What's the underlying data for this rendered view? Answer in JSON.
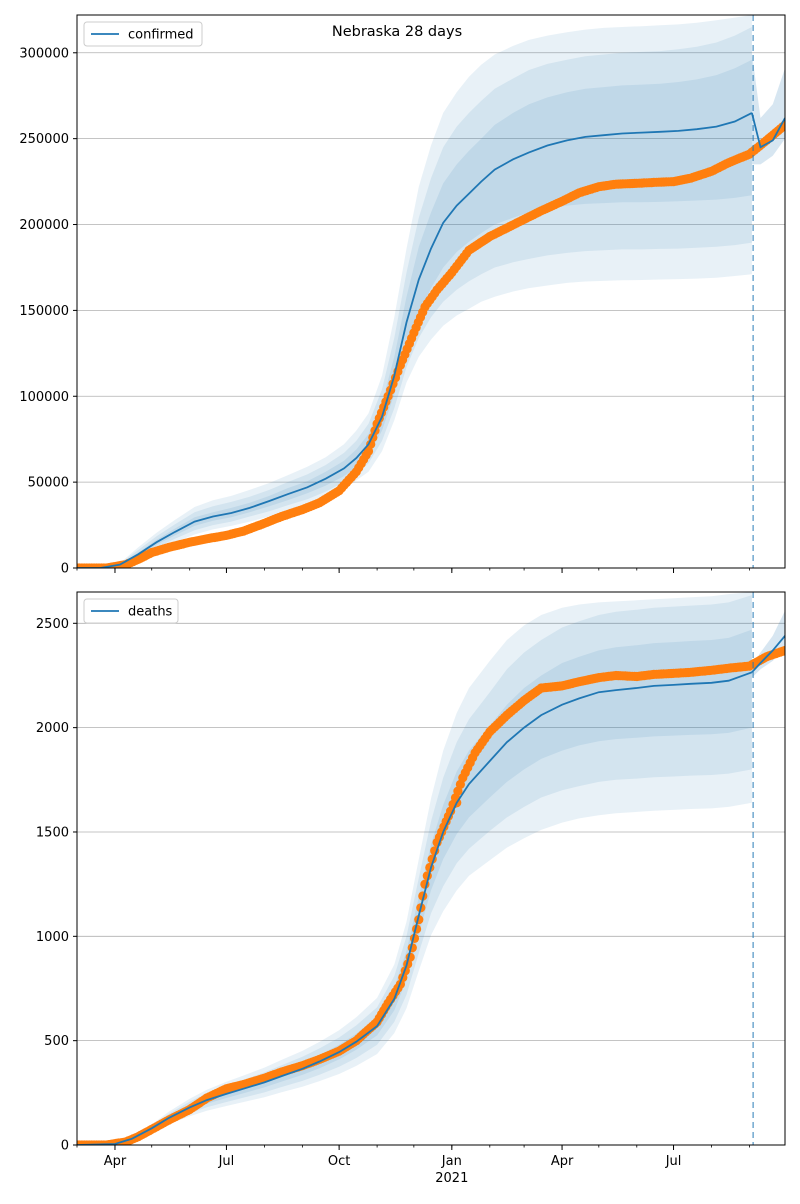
{
  "figure_title": "Nebraska 28 days",
  "x_axis": {
    "tick_labels": [
      "Apr",
      "Jul",
      "Oct",
      "Jan",
      "Apr",
      "Jul"
    ],
    "tick_dates": [
      "2020-04-01",
      "2020-07-01",
      "2020-10-01",
      "2021-01-01",
      "2021-04-01",
      "2021-07-01"
    ],
    "year_label": "2021",
    "xlim": [
      "2020-03-01",
      "2021-09-30"
    ]
  },
  "colors": {
    "model_line": "#1f77b4",
    "band": "#1f77b4",
    "observed": "#ff7f0e",
    "grid": "#b0b0b0",
    "forecast_marker": "#1f77b4"
  },
  "chart_data": [
    {
      "type": "line",
      "legend": "confirmed",
      "legend_position": "top-left",
      "ylim": [
        0,
        322000
      ],
      "yticks": [
        0,
        50000,
        100000,
        150000,
        200000,
        250000,
        300000
      ],
      "ytick_labels": [
        "0",
        "50000",
        "100000",
        "150000",
        "200000",
        "250000",
        "300000"
      ],
      "grid": "horizontal",
      "forecast_start": "2021-09-04",
      "model": {
        "x": [
          "2020-03-01",
          "2020-03-20",
          "2020-04-05",
          "2020-04-20",
          "2020-05-05",
          "2020-05-20",
          "2020-06-05",
          "2020-06-20",
          "2020-07-05",
          "2020-07-20",
          "2020-08-05",
          "2020-08-20",
          "2020-09-05",
          "2020-09-20",
          "2020-10-05",
          "2020-10-15",
          "2020-10-25",
          "2020-11-05",
          "2020-11-15",
          "2020-11-25",
          "2020-12-05",
          "2020-12-15",
          "2020-12-25",
          "2021-01-05",
          "2021-01-15",
          "2021-01-25",
          "2021-02-05",
          "2021-02-20",
          "2021-03-05",
          "2021-03-20",
          "2021-04-05",
          "2021-04-20",
          "2021-05-05",
          "2021-05-20",
          "2021-06-05",
          "2021-06-20",
          "2021-07-05",
          "2021-07-20",
          "2021-08-05",
          "2021-08-20",
          "2021-09-03"
        ],
        "y": [
          0,
          0,
          2000,
          8000,
          15000,
          21000,
          27000,
          30000,
          32000,
          35000,
          39000,
          43000,
          47000,
          52000,
          58000,
          64000,
          72000,
          88000,
          112000,
          143000,
          168000,
          186000,
          201000,
          211000,
          218000,
          225000,
          232000,
          238000,
          242000,
          246000,
          249000,
          251000,
          252000,
          253000,
          253500,
          254000,
          254500,
          255500,
          257000,
          260000,
          265000
        ]
      },
      "bands": [
        {
          "lower": [
            0,
            0,
            1800,
            7000,
            13500,
            19000,
            24500,
            27500,
            29500,
            32500,
            36000,
            39500,
            43500,
            48000,
            53500,
            59000,
            66000,
            80000,
            101000,
            128000,
            148000,
            163000,
            175000,
            184000,
            190000,
            195000,
            200000,
            204000,
            207000,
            209000,
            211000,
            212000,
            212500,
            213000,
            213000,
            213200,
            213500,
            214000,
            214500,
            215500,
            217000
          ],
          "upper": [
            0,
            0,
            2200,
            9000,
            16500,
            23000,
            29500,
            32500,
            35000,
            38000,
            42000,
            46500,
            50500,
            56000,
            62500,
            69000,
            78000,
            96000,
            123000,
            158000,
            187000,
            207000,
            224000,
            235000,
            243000,
            250000,
            258000,
            265000,
            270000,
            274000,
            277000,
            279000,
            280000,
            281000,
            281500,
            282000,
            283000,
            284500,
            287000,
            291000,
            296000
          ]
        },
        {
          "lower": [
            0,
            0,
            1600,
            6000,
            12000,
            17000,
            22000,
            25000,
            27000,
            30000,
            33000,
            36500,
            40000,
            44500,
            50000,
            55000,
            61000,
            74000,
            93000,
            117000,
            134000,
            146000,
            155000,
            162000,
            167000,
            171000,
            175000,
            178000,
            180000,
            182000,
            183500,
            184500,
            185000,
            185500,
            185500,
            185800,
            186000,
            186500,
            187000,
            188000,
            189500
          ],
          "upper": [
            0,
            0,
            2500,
            10500,
            18500,
            25500,
            32500,
            36000,
            38500,
            41500,
            45500,
            50000,
            54500,
            60000,
            67000,
            74000,
            84000,
            104000,
            134000,
            172000,
            204000,
            227000,
            245000,
            257000,
            265000,
            272000,
            279000,
            285000,
            290000,
            293500,
            296000,
            298000,
            299000,
            300000,
            300500,
            301000,
            302000,
            303500,
            306000,
            310000,
            315000
          ]
        },
        {
          "lower": [
            0,
            0,
            1400,
            5000,
            10000,
            15000,
            19500,
            22500,
            24500,
            27000,
            30000,
            33000,
            36500,
            41000,
            46000,
            51000,
            56000,
            68000,
            86000,
            108000,
            123000,
            133000,
            141000,
            147000,
            151000,
            155000,
            158000,
            161000,
            163000,
            164500,
            166000,
            166800,
            167200,
            167500,
            167700,
            168000,
            168200,
            168500,
            169000,
            170000,
            171000
          ],
          "upper": [
            0,
            0,
            2900,
            12000,
            20500,
            28000,
            35500,
            39500,
            42000,
            45500,
            49500,
            54000,
            59000,
            64500,
            72000,
            80000,
            90000,
            112000,
            146000,
            186000,
            222000,
            246000,
            265000,
            277000,
            286000,
            293000,
            299000,
            304000,
            307500,
            310000,
            312000,
            313500,
            314500,
            315000,
            315500,
            316000,
            316500,
            317500,
            319000,
            320500,
            322000
          ]
        }
      ],
      "forecast_model": {
        "x": [
          "2021-09-03",
          "2021-09-10",
          "2021-09-20",
          "2021-09-30"
        ],
        "y": [
          265000,
          245000,
          249000,
          262000
        ],
        "upper": [
          300000,
          262000,
          270000,
          291000
        ],
        "lower": [
          235000,
          235000,
          240000,
          250000
        ]
      },
      "observed": {
        "x": [
          "2020-03-01",
          "2020-03-25",
          "2020-04-10",
          "2020-04-20",
          "2020-05-01",
          "2020-05-15",
          "2020-06-01",
          "2020-06-15",
          "2020-07-01",
          "2020-07-15",
          "2020-08-01",
          "2020-08-15",
          "2020-09-01",
          "2020-09-15",
          "2020-10-01",
          "2020-10-15",
          "2020-10-25",
          "2020-11-01",
          "2020-11-10",
          "2020-11-20",
          "2020-12-01",
          "2020-12-10",
          "2020-12-20",
          "2021-01-01",
          "2021-01-15",
          "2021-02-01",
          "2021-02-15",
          "2021-03-01",
          "2021-03-15",
          "2021-04-01",
          "2021-04-15",
          "2021-05-01",
          "2021-05-15",
          "2021-06-01",
          "2021-06-15",
          "2021-07-01",
          "2021-07-15",
          "2021-08-01",
          "2021-08-15",
          "2021-09-01",
          "2021-09-15",
          "2021-09-30"
        ],
        "y": [
          0,
          0,
          2000,
          5000,
          9000,
          12000,
          15000,
          17000,
          19000,
          21500,
          26000,
          30000,
          34000,
          38000,
          45000,
          56000,
          68000,
          84000,
          100000,
          118000,
          137000,
          152000,
          162000,
          172000,
          185000,
          193000,
          198000,
          203000,
          208000,
          213500,
          218500,
          222000,
          223500,
          224000,
          224500,
          225000,
          227000,
          231000,
          236000,
          241000,
          249000,
          258000
        ]
      }
    },
    {
      "type": "line",
      "legend": "deaths",
      "legend_position": "top-left",
      "ylim": [
        0,
        2650
      ],
      "yticks": [
        0,
        500,
        1000,
        1500,
        2000,
        2500
      ],
      "ytick_labels": [
        "0",
        "500",
        "1000",
        "1500",
        "2000",
        "2500"
      ],
      "grid": "horizontal",
      "forecast_start": "2021-09-04",
      "model": {
        "x": [
          "2020-03-01",
          "2020-04-01",
          "2020-04-15",
          "2020-05-01",
          "2020-05-15",
          "2020-06-01",
          "2020-06-15",
          "2020-07-01",
          "2020-07-15",
          "2020-08-01",
          "2020-08-15",
          "2020-09-01",
          "2020-09-15",
          "2020-10-01",
          "2020-10-15",
          "2020-11-01",
          "2020-11-15",
          "2020-11-25",
          "2020-12-05",
          "2020-12-15",
          "2020-12-25",
          "2021-01-05",
          "2021-01-15",
          "2021-02-01",
          "2021-02-15",
          "2021-03-01",
          "2021-03-15",
          "2021-04-01",
          "2021-04-15",
          "2021-05-01",
          "2021-05-15",
          "2021-06-01",
          "2021-06-15",
          "2021-07-01",
          "2021-07-15",
          "2021-08-01",
          "2021-08-15",
          "2021-09-03"
        ],
        "y": [
          0,
          5,
          30,
          80,
          130,
          180,
          215,
          245,
          270,
          300,
          330,
          365,
          400,
          445,
          495,
          570,
          700,
          860,
          1100,
          1330,
          1500,
          1640,
          1730,
          1840,
          1930,
          2000,
          2060,
          2110,
          2140,
          2170,
          2180,
          2190,
          2200,
          2205,
          2210,
          2215,
          2225,
          2265
        ]
      },
      "bands": [
        {
          "lower": [
            0,
            4,
            27,
            74,
            120,
            166,
            198,
            225,
            248,
            276,
            304,
            336,
            368,
            410,
            456,
            525,
            645,
            790,
            1010,
            1220,
            1370,
            1490,
            1570,
            1665,
            1740,
            1800,
            1850,
            1890,
            1915,
            1935,
            1945,
            1952,
            1958,
            1962,
            1965,
            1968,
            1975,
            2000
          ],
          "upper": [
            0,
            6,
            33,
            86,
            140,
            194,
            232,
            265,
            292,
            324,
            356,
            394,
            432,
            480,
            534,
            615,
            755,
            930,
            1190,
            1440,
            1630,
            1790,
            1890,
            2010,
            2110,
            2190,
            2250,
            2310,
            2340,
            2370,
            2385,
            2395,
            2405,
            2410,
            2415,
            2420,
            2430,
            2470
          ]
        },
        {
          "lower": [
            0,
            3,
            24,
            68,
            110,
            152,
            181,
            206,
            227,
            252,
            278,
            307,
            337,
            375,
            417,
            480,
            590,
            720,
            920,
            1110,
            1240,
            1350,
            1420,
            1505,
            1570,
            1620,
            1665,
            1700,
            1720,
            1740,
            1750,
            1756,
            1762,
            1766,
            1770,
            1773,
            1780,
            1800
          ],
          "upper": [
            0,
            7,
            36,
            92,
            150,
            208,
            249,
            284,
            313,
            348,
            382,
            423,
            463,
            515,
            573,
            660,
            810,
            1000,
            1280,
            1550,
            1760,
            1930,
            2040,
            2170,
            2280,
            2360,
            2420,
            2480,
            2510,
            2540,
            2555,
            2565,
            2575,
            2580,
            2585,
            2590,
            2600,
            2635
          ]
        },
        {
          "lower": [
            0,
            2,
            21,
            62,
            100,
            138,
            164,
            187,
            206,
            229,
            253,
            279,
            306,
            340,
            379,
            436,
            536,
            655,
            835,
            1005,
            1120,
            1220,
            1290,
            1365,
            1425,
            1470,
            1510,
            1545,
            1565,
            1580,
            1590,
            1596,
            1602,
            1606,
            1610,
            1613,
            1620,
            1640
          ],
          "upper": [
            0,
            8,
            39,
            98,
            160,
            222,
            265,
            303,
            333,
            371,
            408,
            451,
            494,
            550,
            612,
            705,
            865,
            1070,
            1370,
            1660,
            1890,
            2070,
            2190,
            2320,
            2420,
            2490,
            2540,
            2575,
            2590,
            2600,
            2605,
            2610,
            2615,
            2620,
            2625,
            2630,
            2640,
            2650
          ]
        }
      ],
      "forecast_model": {
        "x": [
          "2021-09-03",
          "2021-09-10",
          "2021-09-20",
          "2021-09-30"
        ],
        "y": [
          2265,
          2310,
          2370,
          2440
        ],
        "upper": [
          2300,
          2360,
          2440,
          2560
        ],
        "lower": [
          2240,
          2280,
          2320,
          2380
        ]
      },
      "observed": {
        "x": [
          "2020-03-01",
          "2020-03-25",
          "2020-04-10",
          "2020-04-20",
          "2020-05-01",
          "2020-05-15",
          "2020-06-01",
          "2020-06-15",
          "2020-07-01",
          "2020-07-15",
          "2020-08-01",
          "2020-08-15",
          "2020-09-01",
          "2020-09-15",
          "2020-10-01",
          "2020-10-15",
          "2020-11-01",
          "2020-11-10",
          "2020-11-20",
          "2020-11-28",
          "2020-12-05",
          "2020-12-10",
          "2020-12-20",
          "2020-12-31",
          "2021-01-10",
          "2021-01-20",
          "2021-02-01",
          "2021-02-15",
          "2021-03-01",
          "2021-03-15",
          "2021-04-01",
          "2021-04-15",
          "2021-05-01",
          "2021-05-15",
          "2021-06-01",
          "2021-06-15",
          "2021-07-01",
          "2021-07-15",
          "2021-08-01",
          "2021-08-15",
          "2021-09-01",
          "2021-09-15",
          "2021-09-30"
        ],
        "y": [
          0,
          0,
          15,
          40,
          75,
          120,
          170,
          225,
          270,
          290,
          320,
          350,
          380,
          410,
          450,
          500,
          590,
          680,
          770,
          900,
          1080,
          1250,
          1450,
          1600,
          1760,
          1880,
          1980,
          2060,
          2130,
          2190,
          2200,
          2220,
          2240,
          2250,
          2245,
          2255,
          2260,
          2265,
          2275,
          2285,
          2295,
          2340,
          2370
        ]
      },
      "observed_outliers": [
        {
          "x": "2021-01-05",
          "y": 1640
        }
      ]
    }
  ]
}
